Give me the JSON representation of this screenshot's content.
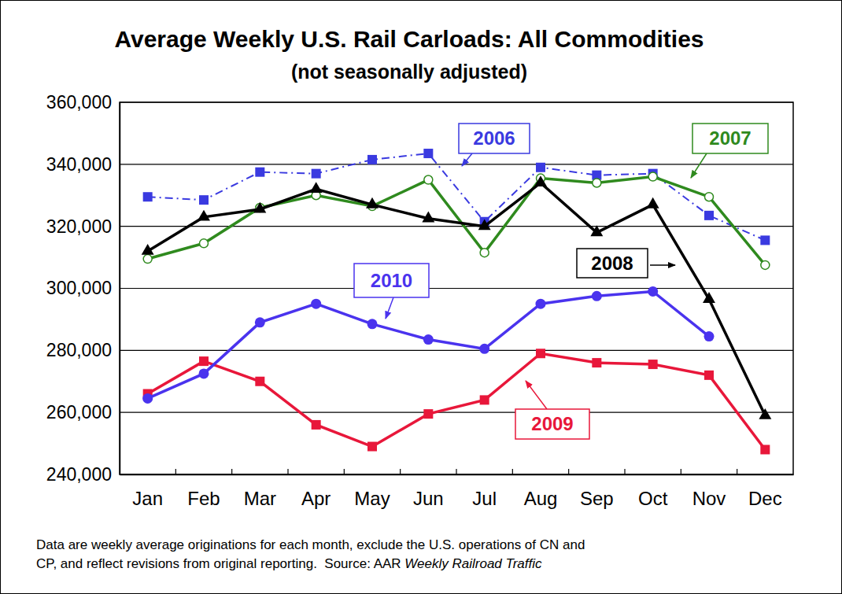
{
  "chart_data": {
    "type": "line",
    "title": "Average Weekly U.S. Rail Carloads: All Commodities",
    "subtitle": "(not seasonally adjusted)",
    "categories": [
      "Jan",
      "Feb",
      "Mar",
      "Apr",
      "May",
      "Jun",
      "Jul",
      "Aug",
      "Sep",
      "Oct",
      "Nov",
      "Dec"
    ],
    "series": [
      {
        "name": "2006",
        "color": "#3a3ae0",
        "marker": "square",
        "line_style": "dashdot",
        "values": [
          329500,
          328500,
          337500,
          337000,
          341500,
          343500,
          321500,
          339000,
          336500,
          337000,
          323500,
          315500
        ]
      },
      {
        "name": "2007",
        "color": "#2f8a1e",
        "marker": "open-circle",
        "line_style": "solid",
        "values": [
          309500,
          314500,
          326000,
          330000,
          326500,
          335000,
          311500,
          335500,
          334000,
          336000,
          329500,
          307500
        ]
      },
      {
        "name": "2008",
        "color": "#000000",
        "marker": "triangle",
        "line_style": "solid",
        "values": [
          312000,
          323000,
          325500,
          332000,
          327000,
          322500,
          320000,
          334000,
          318000,
          327000,
          296500,
          259000
        ]
      },
      {
        "name": "2009",
        "color": "#e8173a",
        "marker": "square",
        "line_style": "solid",
        "values": [
          266000,
          276500,
          270000,
          256000,
          249000,
          259500,
          264000,
          279000,
          276000,
          275500,
          272000,
          248000
        ]
      },
      {
        "name": "2010",
        "color": "#4a33ee",
        "marker": "circle",
        "line_style": "solid",
        "values": [
          264500,
          272500,
          289000,
          295000,
          288500,
          283500,
          280500,
          295000,
          297500,
          299000,
          284500,
          null
        ]
      }
    ],
    "ylim": [
      240000,
      360000
    ],
    "yticks": [
      {
        "value": 240000,
        "label": "240,000"
      },
      {
        "value": 260000,
        "label": "260,000"
      },
      {
        "value": 280000,
        "label": "280,000"
      },
      {
        "value": 300000,
        "label": "300,000"
      },
      {
        "value": 320000,
        "label": "320,000"
      },
      {
        "value": 340000,
        "label": "340,000"
      },
      {
        "value": 360000,
        "label": "360,000"
      }
    ],
    "grid": true,
    "footnote": [
      "Data are weekly average originations for each month, exclude the U.S. operations of CN and",
      "CP, and reflect revisions from original reporting.  Source: AAR "
    ],
    "source_title": "Weekly Railroad Traffic"
  }
}
